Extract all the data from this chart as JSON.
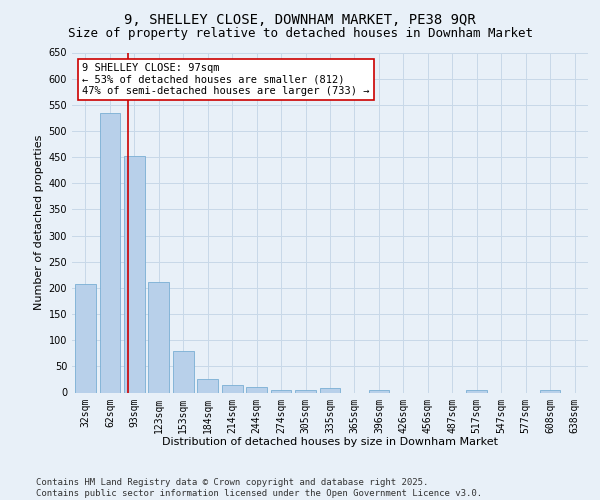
{
  "title": "9, SHELLEY CLOSE, DOWNHAM MARKET, PE38 9QR",
  "subtitle": "Size of property relative to detached houses in Downham Market",
  "xlabel": "Distribution of detached houses by size in Downham Market",
  "ylabel": "Number of detached properties",
  "categories": [
    "32sqm",
    "62sqm",
    "93sqm",
    "123sqm",
    "153sqm",
    "184sqm",
    "214sqm",
    "244sqm",
    "274sqm",
    "305sqm",
    "335sqm",
    "365sqm",
    "396sqm",
    "426sqm",
    "456sqm",
    "487sqm",
    "517sqm",
    "547sqm",
    "577sqm",
    "608sqm",
    "638sqm"
  ],
  "values": [
    207,
    535,
    453,
    212,
    80,
    26,
    14,
    11,
    5,
    5,
    8,
    0,
    5,
    0,
    0,
    0,
    5,
    0,
    0,
    5,
    0
  ],
  "bar_color": "#b8d0ea",
  "bar_edge_color": "#7aafd4",
  "grid_color": "#c8d8e8",
  "background_color": "#e8f0f8",
  "vline_x": 1.73,
  "vline_color": "#cc0000",
  "annotation_text": "9 SHELLEY CLOSE: 97sqm\n← 53% of detached houses are smaller (812)\n47% of semi-detached houses are larger (733) →",
  "annotation_box_facecolor": "#ffffff",
  "annotation_box_edgecolor": "#cc0000",
  "footer_text": "Contains HM Land Registry data © Crown copyright and database right 2025.\nContains public sector information licensed under the Open Government Licence v3.0.",
  "ylim": [
    0,
    650
  ],
  "yticks": [
    0,
    50,
    100,
    150,
    200,
    250,
    300,
    350,
    400,
    450,
    500,
    550,
    600,
    650
  ],
  "title_fontsize": 10,
  "subtitle_fontsize": 9,
  "xlabel_fontsize": 8,
  "ylabel_fontsize": 8,
  "tick_fontsize": 7,
  "annotation_fontsize": 7.5,
  "footer_fontsize": 6.5
}
